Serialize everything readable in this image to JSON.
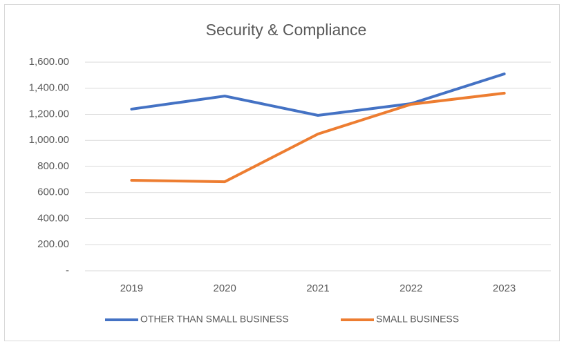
{
  "chart_data": {
    "type": "line",
    "title": "Security & Compliance",
    "categories": [
      "2019",
      "2020",
      "2021",
      "2022",
      "2023"
    ],
    "series": [
      {
        "name": "OTHER THAN SMALL BUSINESS",
        "color": "#4472c4",
        "values": [
          1240,
          1340,
          1192,
          1282,
          1510
        ]
      },
      {
        "name": "SMALL BUSINESS",
        "color": "#ed7d31",
        "values": [
          694,
          683,
          1049,
          1277,
          1362
        ]
      }
    ],
    "ylim": [
      0,
      1600
    ],
    "yticks": [
      {
        "value": 0,
        "label": "-"
      },
      {
        "value": 200,
        "label": "200.00"
      },
      {
        "value": 400,
        "label": "400.00"
      },
      {
        "value": 600,
        "label": "600.00"
      },
      {
        "value": 800,
        "label": "800.00"
      },
      {
        "value": 1000,
        "label": "1,000.00"
      },
      {
        "value": 1200,
        "label": "1,200.00"
      },
      {
        "value": 1400,
        "label": "1,400.00"
      },
      {
        "value": 1600,
        "label": "1,600.00"
      }
    ],
    "grid": true,
    "legend": "bottom"
  }
}
